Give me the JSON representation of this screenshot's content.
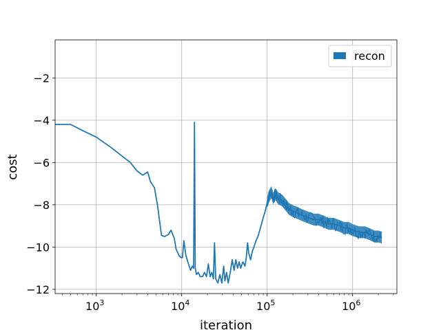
{
  "chart_data": {
    "type": "line",
    "title": "",
    "xlabel": "iteration",
    "ylabel": "cost",
    "x_scale": "log",
    "xlim": [
      330,
      3300000
    ],
    "ylim": [
      -12.2,
      -0.2
    ],
    "grid": true,
    "legend_position": "top-right",
    "x_ticks": [
      {
        "value": 1000,
        "base": "10",
        "exp": "3"
      },
      {
        "value": 10000,
        "base": "10",
        "exp": "4"
      },
      {
        "value": 100000,
        "base": "10",
        "exp": "5"
      },
      {
        "value": 1000000,
        "base": "10",
        "exp": "6"
      }
    ],
    "y_ticks": [
      {
        "value": -2,
        "label": "−2"
      },
      {
        "value": -4,
        "label": "−4"
      },
      {
        "value": -6,
        "label": "−6"
      },
      {
        "value": -8,
        "label": "−8"
      },
      {
        "value": -10,
        "label": "−10"
      },
      {
        "value": -12,
        "label": "−12"
      }
    ],
    "series": [
      {
        "name": "recon",
        "color": "#1f77b4",
        "points": [
          [
            330,
            -4.2
          ],
          [
            500,
            -4.2
          ],
          [
            700,
            -4.5
          ],
          [
            1000,
            -4.8
          ],
          [
            1500,
            -5.3
          ],
          [
            2500,
            -6.0
          ],
          [
            3000,
            -6.4
          ],
          [
            3500,
            -6.6
          ],
          [
            4000,
            -6.45
          ],
          [
            4300,
            -6.9
          ],
          [
            4800,
            -7.2
          ],
          [
            5200,
            -8.0
          ],
          [
            5800,
            -9.45
          ],
          [
            6300,
            -9.5
          ],
          [
            7000,
            -9.4
          ],
          [
            7500,
            -9.2
          ],
          [
            8200,
            -9.6
          ],
          [
            8600,
            -10.1
          ],
          [
            9300,
            -10.4
          ],
          [
            9800,
            -10.5
          ],
          [
            10200,
            -10.5
          ],
          [
            10600,
            -9.7
          ],
          [
            11200,
            -10.4
          ],
          [
            12000,
            -10.8
          ],
          [
            12700,
            -11.1
          ],
          [
            13300,
            -10.9
          ],
          [
            13800,
            -11.0
          ],
          [
            14100,
            -4.1
          ],
          [
            14400,
            -11.0
          ],
          [
            14900,
            -11.3
          ],
          [
            15600,
            -11.2
          ],
          [
            16500,
            -11.4
          ],
          [
            17500,
            -11.4
          ],
          [
            18500,
            -11.2
          ],
          [
            19500,
            -11.4
          ],
          [
            20500,
            -10.8
          ],
          [
            21500,
            -11.4
          ],
          [
            22500,
            -11.2
          ],
          [
            23500,
            -11.5
          ],
          [
            24200,
            -9.8
          ],
          [
            25000,
            -11.5
          ],
          [
            26500,
            -11.7
          ],
          [
            28000,
            -11.3
          ],
          [
            29500,
            -11.7
          ],
          [
            31000,
            -10.9
          ],
          [
            32000,
            -11.6
          ],
          [
            33500,
            -11.2
          ],
          [
            35000,
            -11.7
          ],
          [
            37000,
            -11.2
          ],
          [
            39000,
            -10.6
          ],
          [
            41000,
            -11.1
          ],
          [
            43000,
            -10.6
          ],
          [
            45000,
            -11.0
          ],
          [
            47000,
            -10.7
          ],
          [
            49000,
            -11.0
          ],
          [
            52000,
            -10.7
          ],
          [
            55000,
            -10.9
          ],
          [
            57000,
            -10.5
          ],
          [
            59000,
            -9.8
          ],
          [
            61000,
            -10.3
          ],
          [
            64000,
            -10.6
          ],
          [
            67000,
            -10.2
          ],
          [
            70000,
            -10.0
          ],
          [
            74000,
            -9.7
          ],
          [
            78000,
            -9.5
          ],
          [
            82000,
            -9.2
          ],
          [
            86000,
            -8.9
          ],
          [
            90000,
            -8.6
          ],
          [
            95000,
            -8.3
          ],
          [
            100000,
            -7.9
          ],
          [
            105000,
            -7.6
          ],
          [
            112000,
            -7.4
          ],
          [
            118000,
            -7.7
          ],
          [
            125000,
            -7.5
          ],
          [
            135000,
            -7.7
          ],
          [
            150000,
            -7.8
          ],
          [
            165000,
            -8.0
          ],
          [
            180000,
            -8.2
          ],
          [
            200000,
            -8.3
          ],
          [
            230000,
            -8.4
          ],
          [
            260000,
            -8.5
          ],
          [
            300000,
            -8.6
          ],
          [
            350000,
            -8.7
          ],
          [
            400000,
            -8.7
          ],
          [
            460000,
            -8.8
          ],
          [
            520000,
            -8.9
          ],
          [
            600000,
            -8.9
          ],
          [
            700000,
            -9.0
          ],
          [
            800000,
            -9.1
          ],
          [
            900000,
            -9.1
          ],
          [
            1000000,
            -9.2
          ],
          [
            1200000,
            -9.3
          ],
          [
            1400000,
            -9.3
          ],
          [
            1600000,
            -9.4
          ],
          [
            1800000,
            -9.5
          ],
          [
            2000000,
            -9.5
          ],
          [
            2200000,
            -9.55
          ]
        ],
        "noise_band": {
          "x_range": [
            100000,
            2200000
          ],
          "half_width": 0.28
        }
      }
    ]
  }
}
